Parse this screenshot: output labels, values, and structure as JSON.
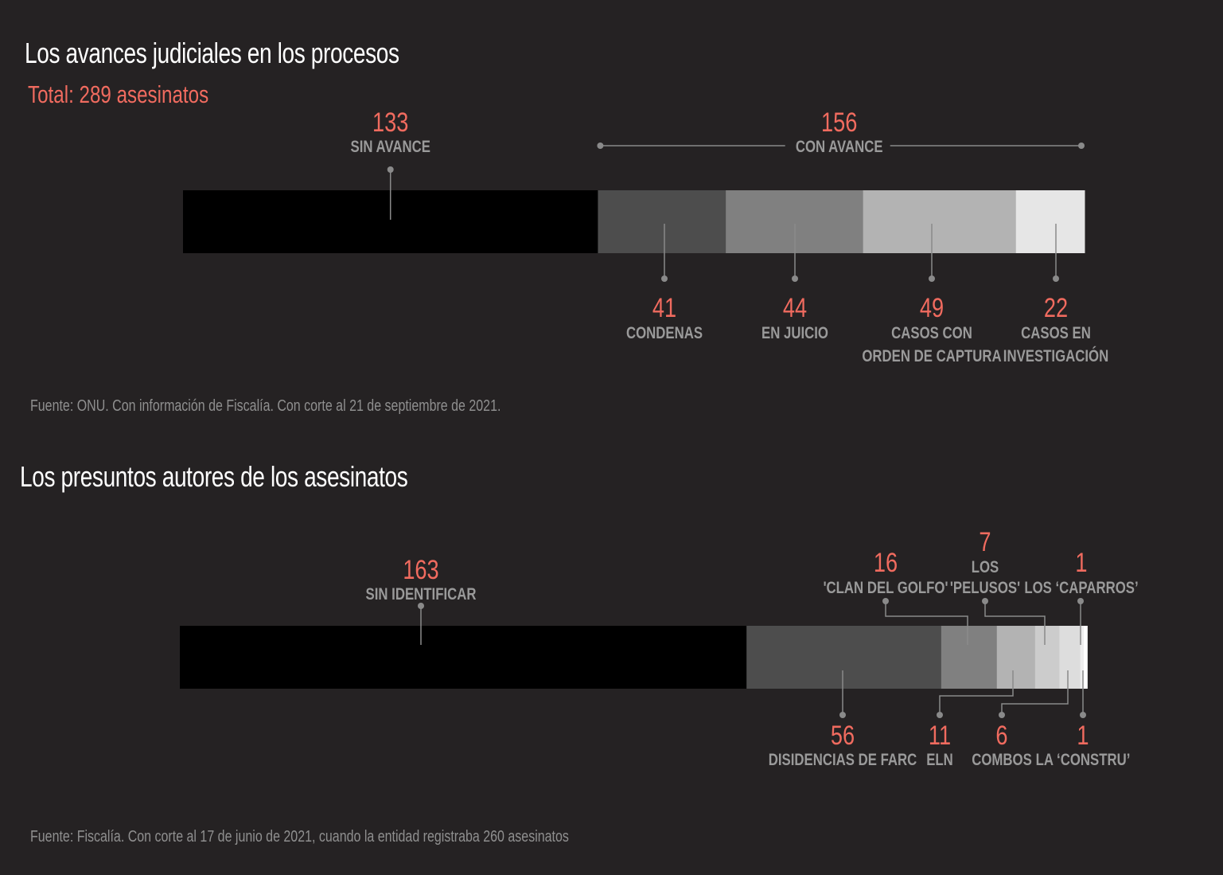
{
  "chart_data": [
    {
      "type": "bar",
      "title": "Los avances judiciales en los procesos",
      "subtitle": "Total: 289 asesinatos",
      "source": "Fuente: ONU. Con información de Fiscalía. Con corte al 21 de septiembre de 2021.",
      "total": 289,
      "group": {
        "value": "156",
        "label": "CON AVANCE"
      },
      "segments": [
        {
          "value": 133,
          "label": [
            "SIN AVANCE"
          ],
          "color": "#000000",
          "label_side": "top"
        },
        {
          "value": 41,
          "label": [
            "CONDENAS"
          ],
          "color": "#4d4d4d",
          "label_side": "bottom"
        },
        {
          "value": 44,
          "label": [
            "EN JUICIO"
          ],
          "color": "#808080",
          "label_side": "bottom"
        },
        {
          "value": 49,
          "label": [
            "CASOS CON",
            "ORDEN DE CAPTURA"
          ],
          "color": "#b3b3b3",
          "label_side": "bottom"
        },
        {
          "value": 22,
          "label": [
            "CASOS EN",
            "INVESTIGACIÓN"
          ],
          "color": "#e6e6e6",
          "label_side": "bottom"
        }
      ]
    },
    {
      "type": "bar",
      "title": "Los presuntos autores de los asesinatos",
      "source": "Fuente: Fiscalía. Con corte al 17 de junio de 2021, cuando la entidad registraba 260 asesinatos",
      "total": 260,
      "segments": [
        {
          "value": 163,
          "label": [
            "SIN IDENTIFICAR"
          ],
          "color": "#000000",
          "label_side": "top"
        },
        {
          "value": 56,
          "label": [
            "DISIDENCIAS DE FARC"
          ],
          "color": "#4d4d4d",
          "label_side": "bottom"
        },
        {
          "value": 16,
          "label": [
            "'CLAN DEL GOLFO'"
          ],
          "color": "#808080",
          "label_side": "top"
        },
        {
          "value": 11,
          "label": [
            "ELN"
          ],
          "color": "#b3b3b3",
          "label_side": "bottom"
        },
        {
          "value": 7,
          "label": [
            "LOS",
            "'PELUSOS'"
          ],
          "color": "#cccccc",
          "label_side": "top"
        },
        {
          "value": 6,
          "label": [
            "COMBOS"
          ],
          "color": "#dddddd",
          "label_side": "bottom"
        },
        {
          "value": 1,
          "label": [
            "LOS ‘CAPARROS’"
          ],
          "color": "#eeeeee",
          "label_side": "top"
        },
        {
          "value": 1,
          "label": [
            "LA ‘CONSTRU’"
          ],
          "color": "#ffffff",
          "label_side": "bottom"
        }
      ]
    }
  ]
}
